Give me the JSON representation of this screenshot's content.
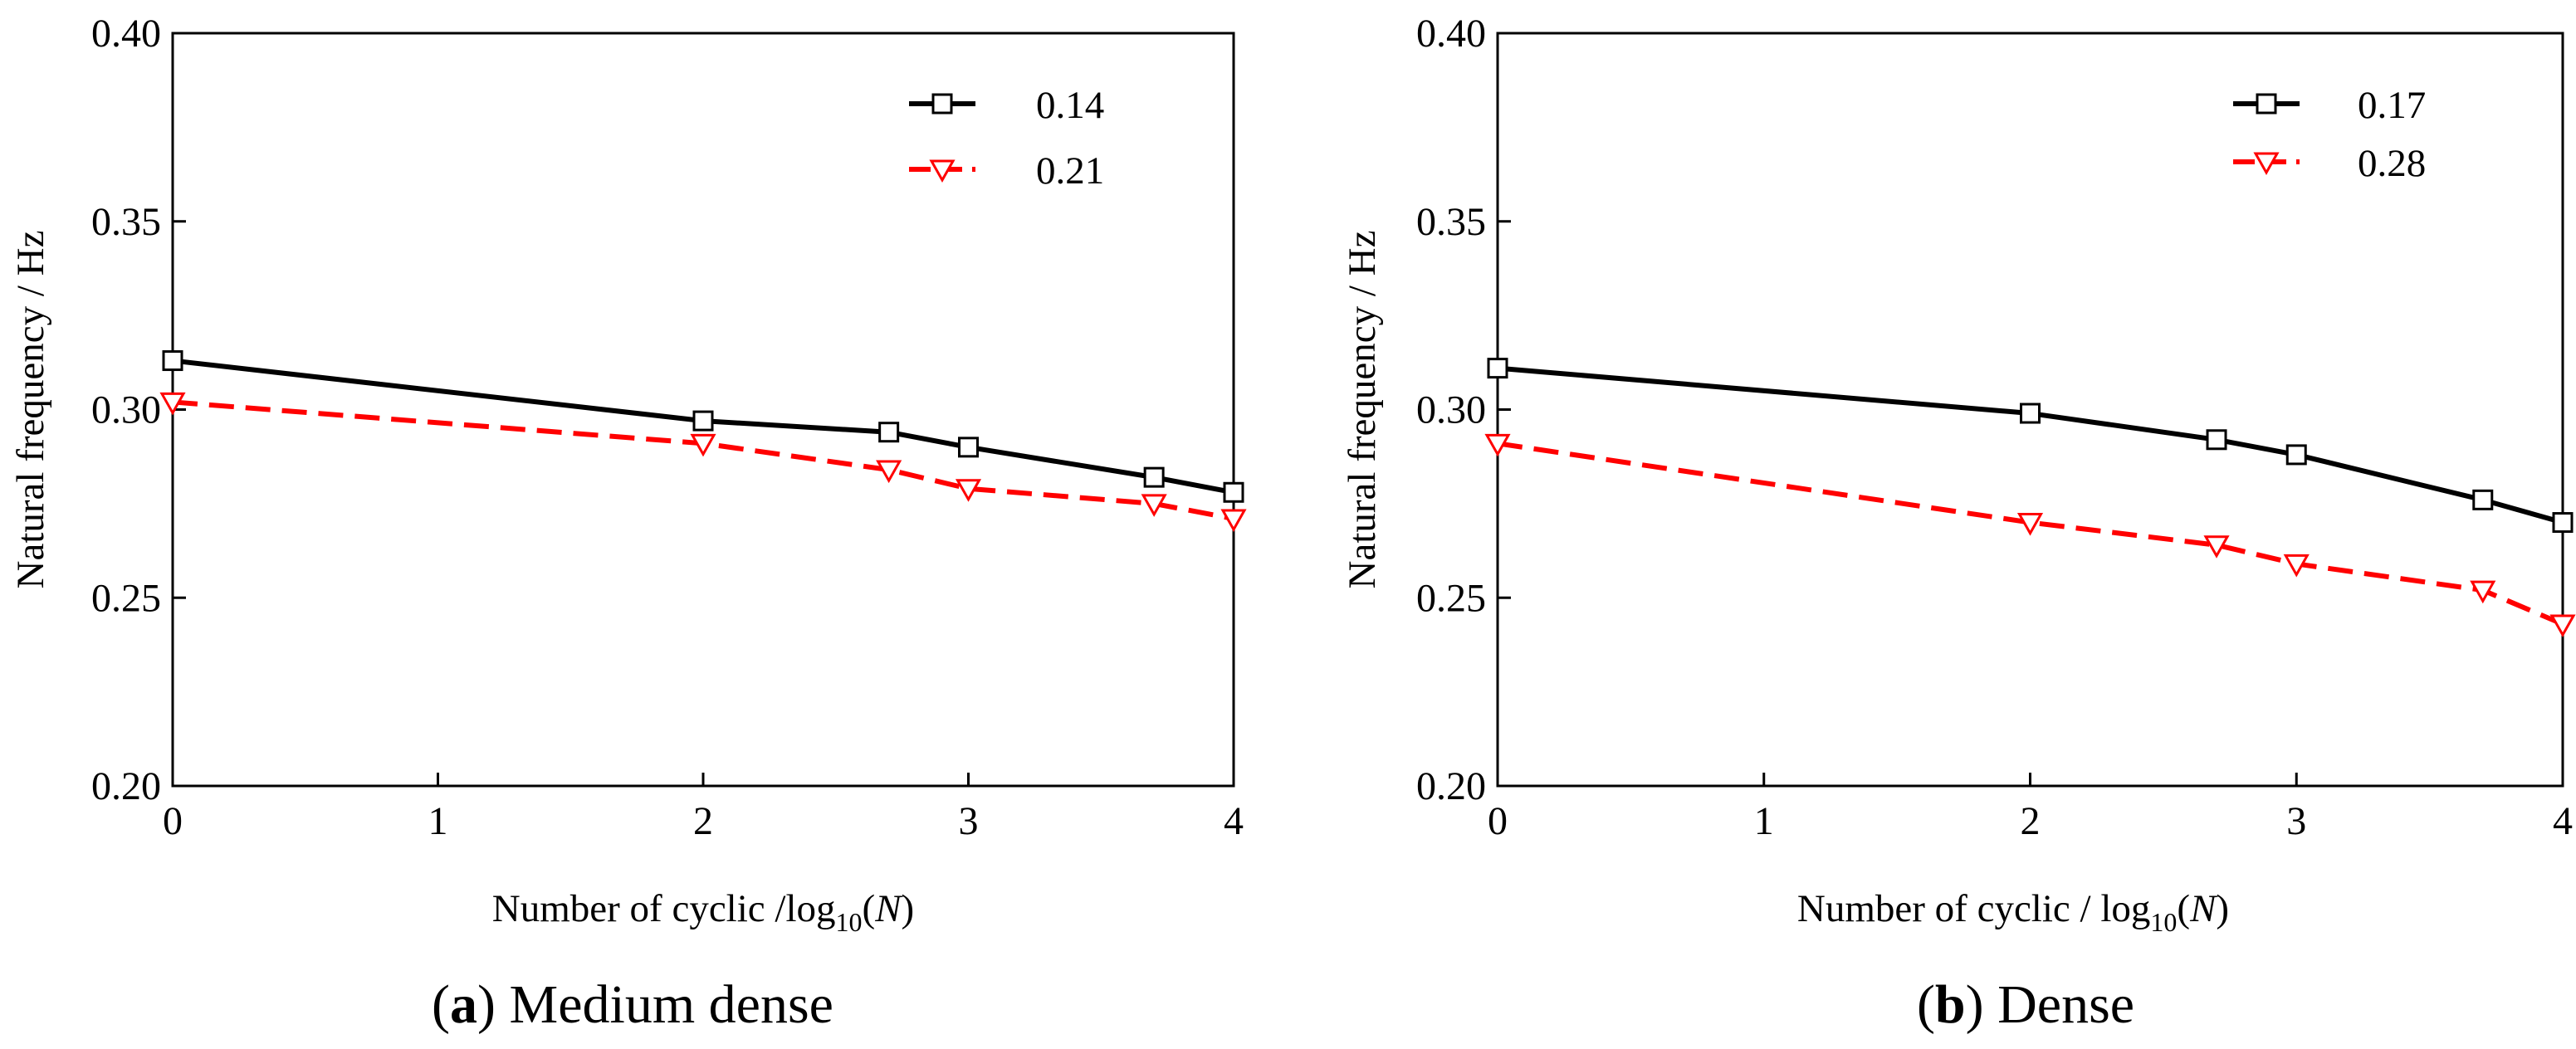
{
  "chart_data": [
    {
      "type": "line",
      "panel_label": "a",
      "title": "Medium dense",
      "xlabel_prefix": "Number of cyclic /log",
      "xlabel_sub": "10",
      "xlabel_open": "(",
      "xlabel_var": "N",
      "xlabel_close": ")",
      "ylabel": "Natural frequency / Hz",
      "xlim": [
        0,
        4
      ],
      "ylim": [
        0.2,
        0.4
      ],
      "xticks": [
        0,
        1,
        2,
        3,
        4
      ],
      "yticks": [
        0.2,
        0.25,
        0.3,
        0.35,
        0.4
      ],
      "xtick_labels": [
        "0",
        "1",
        "2",
        "3",
        "4"
      ],
      "ytick_labels": [
        "0.20",
        "0.25",
        "0.30",
        "0.35",
        "0.40"
      ],
      "legend_position": "top-right",
      "series": [
        {
          "name": "0.14",
          "color": "#000000",
          "dash": "solid",
          "marker": "square",
          "x": [
            0,
            2,
            2.7,
            3,
            3.7,
            4
          ],
          "y": [
            0.313,
            0.297,
            0.294,
            0.29,
            0.282,
            0.278
          ]
        },
        {
          "name": "0.21",
          "color": "#ff0000",
          "dash": "dashed",
          "marker": "triangle-down",
          "x": [
            0,
            2,
            2.7,
            3,
            3.7,
            4
          ],
          "y": [
            0.302,
            0.291,
            0.284,
            0.279,
            0.275,
            0.271
          ]
        }
      ]
    },
    {
      "type": "line",
      "panel_label": "b",
      "title": "Dense",
      "xlabel_prefix": "Number of cyclic / log",
      "xlabel_sub": "10",
      "xlabel_open": "(",
      "xlabel_var": "N",
      "xlabel_close": ")",
      "ylabel": "Natural frequency / Hz",
      "xlim": [
        0,
        4
      ],
      "ylim": [
        0.2,
        0.4
      ],
      "xticks": [
        0,
        1,
        2,
        3,
        4
      ],
      "yticks": [
        0.2,
        0.25,
        0.3,
        0.35,
        0.4
      ],
      "xtick_labels": [
        "0",
        "1",
        "2",
        "3",
        "4"
      ],
      "ytick_labels": [
        "0.20",
        "0.25",
        "0.30",
        "0.35",
        "0.40"
      ],
      "legend_position": "top-right",
      "series": [
        {
          "name": "0.17",
          "color": "#000000",
          "dash": "solid",
          "marker": "square",
          "x": [
            0,
            2,
            2.7,
            3,
            3.7,
            4
          ],
          "y": [
            0.311,
            0.299,
            0.292,
            0.288,
            0.276,
            0.27
          ]
        },
        {
          "name": "0.28",
          "color": "#ff0000",
          "dash": "dashed",
          "marker": "triangle-down",
          "x": [
            0,
            2,
            2.7,
            3,
            3.7,
            4
          ],
          "y": [
            0.291,
            0.27,
            0.264,
            0.259,
            0.252,
            0.243
          ]
        }
      ]
    }
  ]
}
